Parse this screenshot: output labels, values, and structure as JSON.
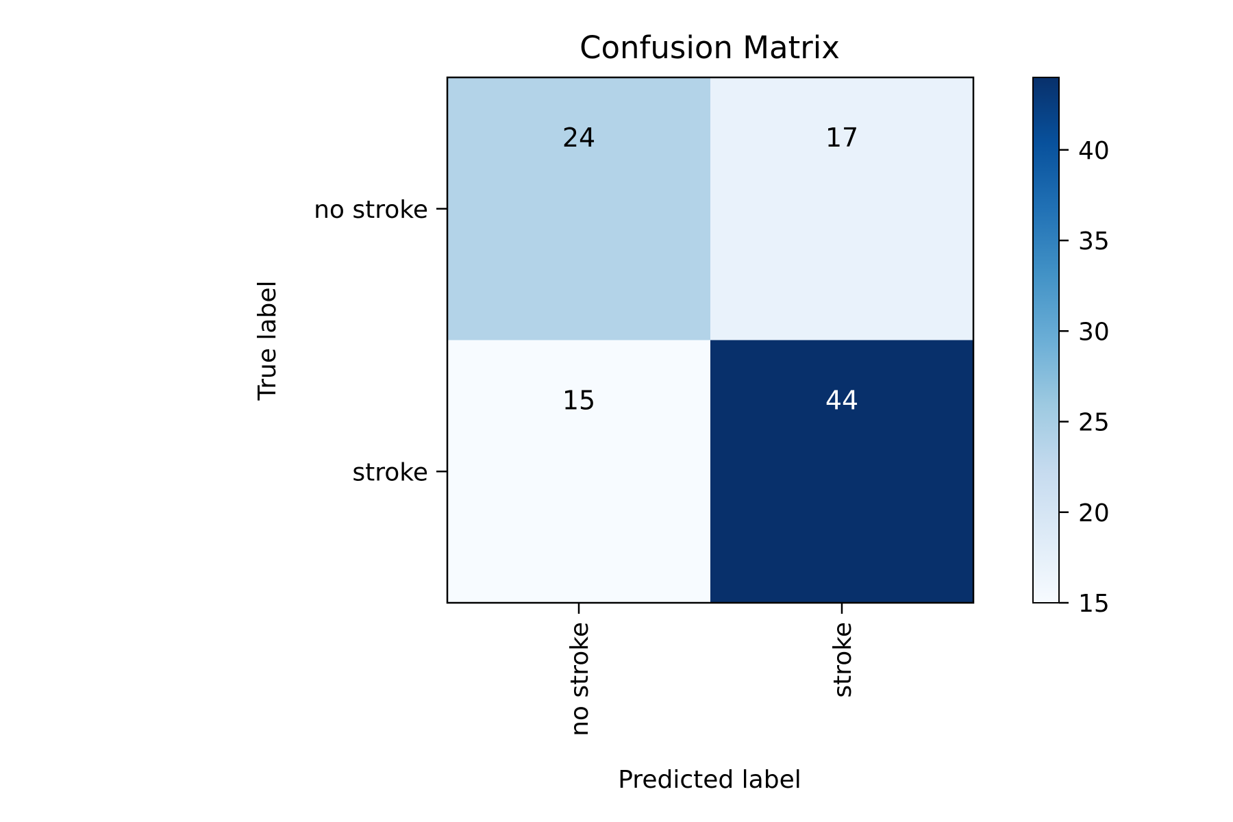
{
  "chart_data": {
    "type": "heatmap",
    "title": "Confusion Matrix",
    "xlabel": "Predicted label",
    "ylabel": "True label",
    "x_categories": [
      "no stroke",
      "stroke"
    ],
    "y_categories": [
      "no stroke",
      "stroke"
    ],
    "values": [
      [
        24,
        17
      ],
      [
        15,
        44
      ]
    ],
    "colorbar": {
      "range": [
        15,
        44
      ],
      "ticks": [
        "15",
        "20",
        "25",
        "30",
        "35",
        "40"
      ],
      "colormap": "Blues"
    },
    "grid": false
  }
}
